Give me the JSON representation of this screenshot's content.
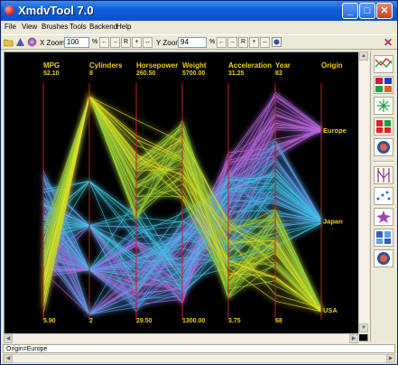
{
  "window": {
    "title": "XmdvTool 7.0"
  },
  "menu": [
    "File",
    "View",
    "Brushes",
    "Tools",
    "Backend",
    "Help"
  ],
  "toolbar": {
    "xzoom_label": "X Zoom",
    "xzoom_value": "100",
    "yzoom_label": "Y Zoom",
    "yzoom_value": "94",
    "percent": "%",
    "buttons": [
      "←",
      "→",
      "R",
      "+",
      "↔"
    ]
  },
  "axes": [
    {
      "name": "MPG",
      "max": "52.10",
      "min": "5.90"
    },
    {
      "name": "Cylinders",
      "max": "8",
      "min": "2"
    },
    {
      "name": "Horsepower",
      "max": "260.50",
      "min": "29.50"
    },
    {
      "name": "Weight",
      "max": "5700.00",
      "min": "1300.00"
    },
    {
      "name": "Acceleration",
      "max": "31.25",
      "min": "3.75"
    },
    {
      "name": "Year",
      "max": "83",
      "min": "68"
    },
    {
      "name": "Origin",
      "max": "",
      "min": ""
    }
  ],
  "origin_labels": [
    "Europe",
    "Japan",
    "USA"
  ],
  "status": "Origin=Europe",
  "colors": {
    "axis": "#c0202a",
    "label": "#f0d000",
    "green": "#9ccc38",
    "blue": "#5a9ae8",
    "purple": "#b868e0",
    "cyan": "#3cc8e0",
    "yellow": "#e8e020"
  }
}
